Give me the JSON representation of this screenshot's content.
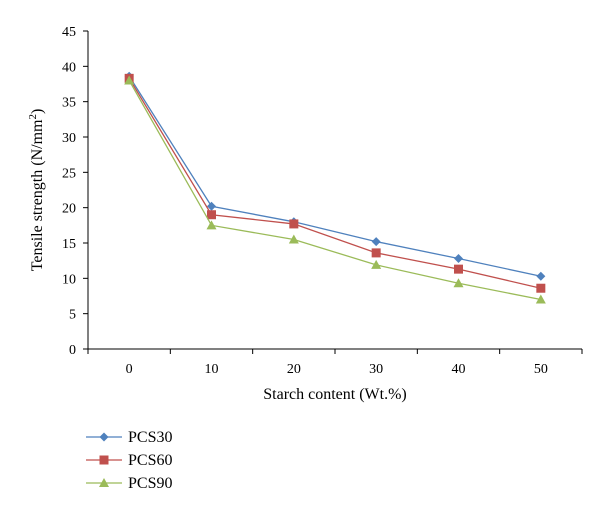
{
  "chart_data": {
    "type": "line",
    "x": [
      0,
      10,
      20,
      30,
      40,
      50
    ],
    "xlabel": "Starch content (Wt.%)",
    "ylabel_main": "Tensile strength (N/mm",
    "ylabel_sup": "2",
    "ylabel_end": ")",
    "ylim": [
      0,
      45
    ],
    "yticks": [
      0,
      5,
      10,
      15,
      20,
      25,
      30,
      35,
      40,
      45
    ],
    "xtick_labels": [
      "0",
      "10",
      "20",
      "30",
      "40",
      "50"
    ],
    "ytick_labels": [
      "0",
      "5",
      "10",
      "15",
      "20",
      "25",
      "30",
      "35",
      "40",
      "45"
    ],
    "grid": false,
    "legend_position": "bottom-left",
    "series": [
      {
        "name": "PCS30",
        "color": "#4f81bd",
        "marker": "diamond",
        "values": [
          38.6,
          20.2,
          18.0,
          15.2,
          12.8,
          10.3
        ]
      },
      {
        "name": "PCS60",
        "color": "#c0504d",
        "marker": "square",
        "values": [
          38.3,
          19.0,
          17.7,
          13.6,
          11.3,
          8.6
        ]
      },
      {
        "name": "PCS90",
        "color": "#9bbb59",
        "marker": "triangle",
        "values": [
          38.0,
          17.5,
          15.5,
          11.9,
          9.3,
          7.0
        ]
      }
    ]
  }
}
